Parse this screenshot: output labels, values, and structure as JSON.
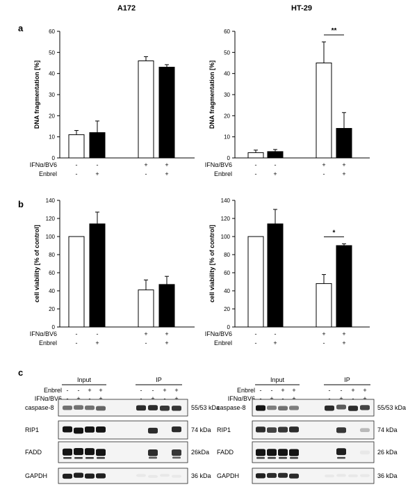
{
  "page": {
    "column_titles": [
      "A172",
      "HT-29"
    ]
  },
  "chart_data": [
    {
      "id": "a-A172",
      "panel": "a",
      "type": "bar",
      "ylabel": "DNA fragmentation [%]",
      "ylim": [
        0,
        60
      ],
      "yticks": [
        0,
        10,
        20,
        30,
        40,
        50,
        60
      ],
      "conditions": [
        {
          "value": 11,
          "error": 2,
          "fill": "#ffffff"
        },
        {
          "value": 12,
          "error": 5.5,
          "fill": "#000000"
        },
        {
          "value": 46,
          "error": 2,
          "fill": "#ffffff"
        },
        {
          "value": 43,
          "error": 1.2,
          "fill": "#000000"
        }
      ],
      "significance": null
    },
    {
      "id": "a-HT29",
      "panel": "a",
      "type": "bar",
      "ylabel": "DNA fragmentation [%]",
      "ylim": [
        0,
        60
      ],
      "yticks": [
        0,
        10,
        20,
        30,
        40,
        50,
        60
      ],
      "conditions": [
        {
          "value": 2.5,
          "error": 1.2,
          "fill": "#ffffff"
        },
        {
          "value": 3,
          "error": 1,
          "fill": "#000000"
        },
        {
          "value": 45,
          "error": 10,
          "fill": "#ffffff"
        },
        {
          "value": 14,
          "error": 7.5,
          "fill": "#000000"
        }
      ],
      "significance": {
        "label": "**",
        "between": [
          2,
          3
        ]
      }
    },
    {
      "id": "b-A172",
      "panel": "b",
      "type": "bar",
      "ylabel": "cell viability [% of control]",
      "ylim": [
        0,
        140
      ],
      "yticks": [
        0,
        20,
        40,
        60,
        80,
        100,
        120,
        140
      ],
      "conditions": [
        {
          "value": 100,
          "error": 0,
          "fill": "#ffffff"
        },
        {
          "value": 114,
          "error": 13,
          "fill": "#000000"
        },
        {
          "value": 41,
          "error": 11,
          "fill": "#ffffff"
        },
        {
          "value": 47,
          "error": 9,
          "fill": "#000000"
        }
      ],
      "significance": null
    },
    {
      "id": "b-HT29",
      "panel": "b",
      "type": "bar",
      "ylabel": "cell viability [% of control]",
      "ylim": [
        0,
        140
      ],
      "yticks": [
        0,
        20,
        40,
        60,
        80,
        100,
        120,
        140
      ],
      "conditions": [
        {
          "value": 100,
          "error": 0,
          "fill": "#ffffff"
        },
        {
          "value": 114,
          "error": 16,
          "fill": "#000000"
        },
        {
          "value": 48,
          "error": 10,
          "fill": "#ffffff"
        },
        {
          "value": 90,
          "error": 2,
          "fill": "#000000"
        }
      ],
      "significance": {
        "label": "*",
        "between": [
          2,
          3
        ]
      }
    }
  ],
  "treatment_table": {
    "rows": [
      {
        "label": "IFNα/BV6",
        "values": [
          "-",
          "-",
          "+",
          "+"
        ]
      },
      {
        "label": "Enbrel",
        "values": [
          "-",
          "+",
          "-",
          "+"
        ]
      }
    ]
  },
  "blots": {
    "panel": "c",
    "group_labels": [
      "Input",
      "IP"
    ],
    "header_rows": [
      {
        "label": "Enbrel",
        "values": [
          "-",
          "-",
          "+",
          "+",
          "-",
          "-",
          "+",
          "+"
        ]
      },
      {
        "label": "IFNα/BV6",
        "values": [
          "-",
          "+",
          "-",
          "+",
          "-",
          "+",
          "-",
          "+"
        ]
      }
    ],
    "left": {
      "rows": [
        {
          "protein": "caspase-8",
          "size": "55/53 kDa"
        },
        {
          "protein": "RIP1",
          "size": "74 kDa"
        },
        {
          "protein": "FADD",
          "size": "26kDa"
        },
        {
          "protein": "GAPDH",
          "size": "36 kDa"
        }
      ]
    },
    "right": {
      "rows": [
        {
          "protein": "caspase-8",
          "size": "55/53 kDa"
        },
        {
          "protein": "RIP1",
          "size": "74 kDa"
        },
        {
          "protein": "FADD",
          "size": "26 kDa"
        },
        {
          "protein": "GAPDH",
          "size": "36 kDa"
        }
      ]
    }
  }
}
